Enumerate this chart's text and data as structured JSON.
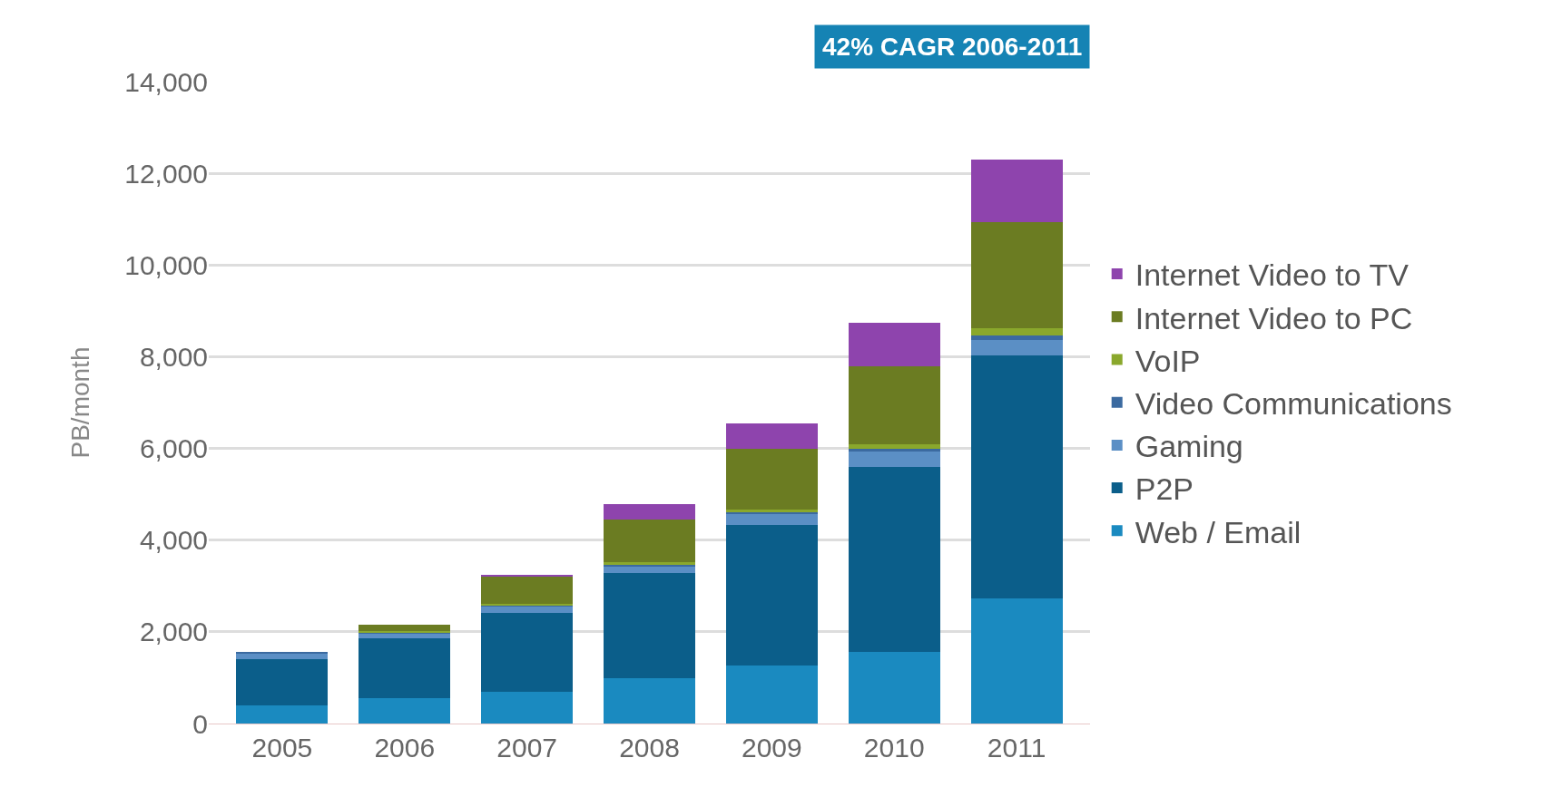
{
  "chart_data": {
    "type": "bar",
    "stacked": true,
    "ylabel": "PB/month",
    "annotations": [
      "42% CAGR 2006-2011"
    ],
    "categories": [
      "2005",
      "2006",
      "2007",
      "2008",
      "2009",
      "2010",
      "2011"
    ],
    "series": [
      {
        "name": "Web / Email",
        "color": "#1a8ac0",
        "values": [
          400,
          550,
          700,
          990,
          1260,
          1570,
          2730
        ]
      },
      {
        "name": "P2P",
        "color": "#0b5e8a",
        "values": [
          1000,
          1300,
          1720,
          2290,
          3080,
          4030,
          5290
        ]
      },
      {
        "name": "Gaming",
        "color": "#5b8fc5",
        "values": [
          130,
          120,
          150,
          150,
          220,
          330,
          350
        ]
      },
      {
        "name": "Video Communications",
        "color": "#3b6aa0",
        "values": [
          20,
          20,
          20,
          50,
          50,
          60,
          90
        ]
      },
      {
        "name": "VoIP",
        "color": "#8aa82c",
        "values": [
          0,
          20,
          20,
          30,
          60,
          110,
          170
        ]
      },
      {
        "name": "Internet Video to PC",
        "color": "#6b7c22",
        "values": [
          0,
          150,
          600,
          930,
          1320,
          1700,
          2300
        ]
      },
      {
        "name": "Internet Video to TV",
        "color": "#8e44ad",
        "values": [
          0,
          0,
          20,
          340,
          550,
          940,
          1370
        ]
      }
    ],
    "ylim": [
      0,
      14000
    ],
    "yticks": [
      {
        "value": 0,
        "label": "0"
      },
      {
        "value": 2000,
        "label": "2,000"
      },
      {
        "value": 4000,
        "label": "4,000"
      },
      {
        "value": 6000,
        "label": "6,000"
      },
      {
        "value": 8000,
        "label": "8,000"
      },
      {
        "value": 10000,
        "label": "10,000"
      },
      {
        "value": 12000,
        "label": "12,000"
      },
      {
        "value": 14000,
        "label": "14,000"
      }
    ],
    "grid": "y",
    "legend": "right"
  }
}
